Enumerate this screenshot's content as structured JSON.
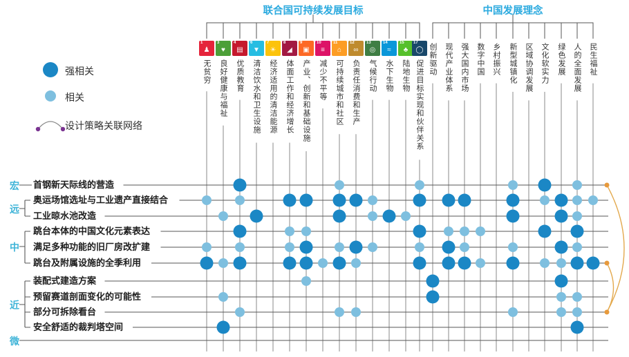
{
  "titles": {
    "un_group": "联合国可持续发展目标",
    "cn_group": "中国发展理念"
  },
  "legend": {
    "strong": "强相关",
    "weak": "相关",
    "network": "设计策略关联网络"
  },
  "colors": {
    "header_un": "#2BAADF",
    "header_cn": "#2BAADF",
    "scale_text": "#3FB4D8",
    "strong_dot": "#1B87C5",
    "weak_dot": "#7EBFDF",
    "row_line": "#555555",
    "col_line": "#8a8a8a",
    "bracket": "#555555",
    "arc": "#E3A94E",
    "arc_anchor": "#E79A3C",
    "legend_arc": "#8a8a8a",
    "legend_arc_dot": "#7A3391",
    "label_text": "#333333"
  },
  "chart_data": {
    "type": "heatmap",
    "subtype": "correlation-dot-matrix",
    "legend_position": "left",
    "column_groups": [
      {
        "id": "un",
        "label": "联合国可持续发展目标"
      },
      {
        "id": "cn",
        "label": "中国发展理念"
      }
    ],
    "columns": [
      {
        "group": "un",
        "label": "无贫穷",
        "num": "1",
        "color": "#E5243B",
        "glyph": "♟"
      },
      {
        "group": "un",
        "label": "良好健康与福祉",
        "num": "3",
        "color": "#4C9F38",
        "glyph": "♥"
      },
      {
        "group": "un",
        "label": "优质教育",
        "num": "4",
        "color": "#C5192D",
        "glyph": "▤"
      },
      {
        "group": "un",
        "label": "清洁饮水和卫生设施",
        "num": "6",
        "color": "#26BDE2",
        "glyph": "▼"
      },
      {
        "group": "un",
        "label": "经济适用的清洁能源",
        "num": "7",
        "color": "#FCC30B",
        "glyph": "☀"
      },
      {
        "group": "un",
        "label": "体面工作和经济增长",
        "num": "8",
        "color": "#A21942",
        "glyph": "◢"
      },
      {
        "group": "un",
        "label": "产业、创新和基础设施",
        "num": "9",
        "color": "#FD6925",
        "glyph": "▣"
      },
      {
        "group": "un",
        "label": "减少不平等",
        "num": "10",
        "color": "#DD1367",
        "glyph": "≡"
      },
      {
        "group": "un",
        "label": "可持续城市和社区",
        "num": "11",
        "color": "#FD9D24",
        "glyph": "⌂"
      },
      {
        "group": "un",
        "label": "负责任消费和生产",
        "num": "12",
        "color": "#BF8B2E",
        "glyph": "∞"
      },
      {
        "group": "un",
        "label": "气候行动",
        "num": "13",
        "color": "#3F7E44",
        "glyph": "◎"
      },
      {
        "group": "un",
        "label": "水下生物",
        "num": "14",
        "color": "#0A97D9",
        "glyph": "≈"
      },
      {
        "group": "un",
        "label": "陆地生物",
        "num": "15",
        "color": "#56C02B",
        "glyph": "♣"
      },
      {
        "group": "un",
        "label": "促进目标实现和伙伴关系",
        "num": "17",
        "color": "#19486A",
        "glyph": "◯"
      },
      {
        "group": "cn",
        "label": "创新驱动"
      },
      {
        "group": "cn",
        "label": "现代产业体系"
      },
      {
        "group": "cn",
        "label": "强大国内市场"
      },
      {
        "group": "cn",
        "label": "数字中国"
      },
      {
        "group": "cn",
        "label": "乡村振兴"
      },
      {
        "group": "cn",
        "label": "新型城镇化"
      },
      {
        "group": "cn",
        "label": "区域协调发展"
      },
      {
        "group": "cn",
        "label": "文化软实力"
      },
      {
        "group": "cn",
        "label": "绿色发展"
      },
      {
        "group": "cn",
        "label": "人的全面发展"
      },
      {
        "group": "cn",
        "label": "民生福祉"
      }
    ],
    "scales": [
      {
        "label": "宏"
      },
      {
        "label": "远"
      },
      {
        "label": "中"
      },
      {
        "label": "近"
      },
      {
        "label": "微"
      }
    ],
    "rows": [
      {
        "label": "首钢新天际线的营造",
        "scale": "宏"
      },
      {
        "label": "奥运场馆选址与工业遗产直接结合",
        "scale": "远"
      },
      {
        "label": "工业晾水池改造",
        "scale": "远"
      },
      {
        "label": "跳台本体的中国文化元素表达",
        "scale": "中"
      },
      {
        "label": "满足多种功能的旧厂房改扩建",
        "scale": "中"
      },
      {
        "label": "跳台及附属设施的全季利用",
        "scale": "中"
      },
      {
        "label": "装配式建造方案",
        "scale": "近"
      },
      {
        "label": "预留赛道剖面变化的可能性",
        "scale": "近"
      },
      {
        "label": "部分可拆除看台",
        "scale": "近"
      },
      {
        "label": "安全舒适的裁判塔空间",
        "scale": "近"
      }
    ],
    "strength_values": {
      "s": "强相关",
      "w": "相关"
    },
    "cells": [
      [
        [
          2,
          "s"
        ],
        [
          8,
          "w"
        ],
        [
          13,
          "w"
        ],
        [
          19,
          "w"
        ],
        [
          21,
          "s"
        ],
        [
          23,
          "w"
        ]
      ],
      [
        [
          0,
          "w"
        ],
        [
          2,
          "w"
        ],
        [
          5,
          "s"
        ],
        [
          6,
          "s"
        ],
        [
          8,
          "s"
        ],
        [
          9,
          "s"
        ],
        [
          10,
          "w"
        ],
        [
          13,
          "s"
        ],
        [
          15,
          "s"
        ],
        [
          16,
          "s"
        ],
        [
          19,
          "s"
        ],
        [
          21,
          "w"
        ],
        [
          22,
          "s"
        ],
        [
          23,
          "w"
        ],
        [
          24,
          "w"
        ]
      ],
      [
        [
          1,
          "w"
        ],
        [
          3,
          "s"
        ],
        [
          8,
          "s"
        ],
        [
          10,
          "w"
        ],
        [
          11,
          "s"
        ],
        [
          12,
          "w"
        ],
        [
          19,
          "s"
        ],
        [
          22,
          "s"
        ],
        [
          23,
          "w"
        ]
      ],
      [
        [
          2,
          "s"
        ],
        [
          5,
          "w"
        ],
        [
          6,
          "w"
        ],
        [
          13,
          "s"
        ],
        [
          15,
          "w"
        ],
        [
          16,
          "w"
        ],
        [
          17,
          "w"
        ],
        [
          21,
          "s"
        ],
        [
          23,
          "s"
        ]
      ],
      [
        [
          0,
          "w"
        ],
        [
          2,
          "w"
        ],
        [
          5,
          "w"
        ],
        [
          6,
          "s"
        ],
        [
          8,
          "w"
        ],
        [
          9,
          "s"
        ],
        [
          10,
          "w"
        ],
        [
          13,
          "w"
        ],
        [
          15,
          "s"
        ],
        [
          16,
          "w"
        ],
        [
          19,
          "w"
        ],
        [
          22,
          "s"
        ],
        [
          23,
          "w"
        ]
      ],
      [
        [
          0,
          "s"
        ],
        [
          1,
          "w"
        ],
        [
          2,
          "s"
        ],
        [
          5,
          "s"
        ],
        [
          6,
          "s"
        ],
        [
          7,
          "w"
        ],
        [
          8,
          "s"
        ],
        [
          9,
          "w"
        ],
        [
          13,
          "s"
        ],
        [
          15,
          "s"
        ],
        [
          16,
          "s"
        ],
        [
          17,
          "w"
        ],
        [
          19,
          "s"
        ],
        [
          21,
          "w"
        ],
        [
          22,
          "w"
        ],
        [
          23,
          "s"
        ],
        [
          24,
          "s"
        ]
      ],
      [
        [
          6,
          "w"
        ],
        [
          14,
          "s"
        ],
        [
          22,
          "s"
        ]
      ],
      [
        [
          1,
          "w"
        ],
        [
          14,
          "s"
        ],
        [
          22,
          "w"
        ],
        [
          23,
          "w"
        ]
      ],
      [
        [
          2,
          "w"
        ],
        [
          8,
          "w"
        ],
        [
          9,
          "w"
        ],
        [
          19,
          "w"
        ],
        [
          22,
          "w"
        ],
        [
          23,
          "w"
        ]
      ],
      [
        [
          1,
          "s"
        ],
        [
          23,
          "s"
        ]
      ]
    ],
    "network": {
      "anchor_rows": [
        0,
        5,
        8
      ],
      "arcs": [
        [
          0,
          8
        ],
        [
          5,
          8
        ]
      ]
    }
  }
}
